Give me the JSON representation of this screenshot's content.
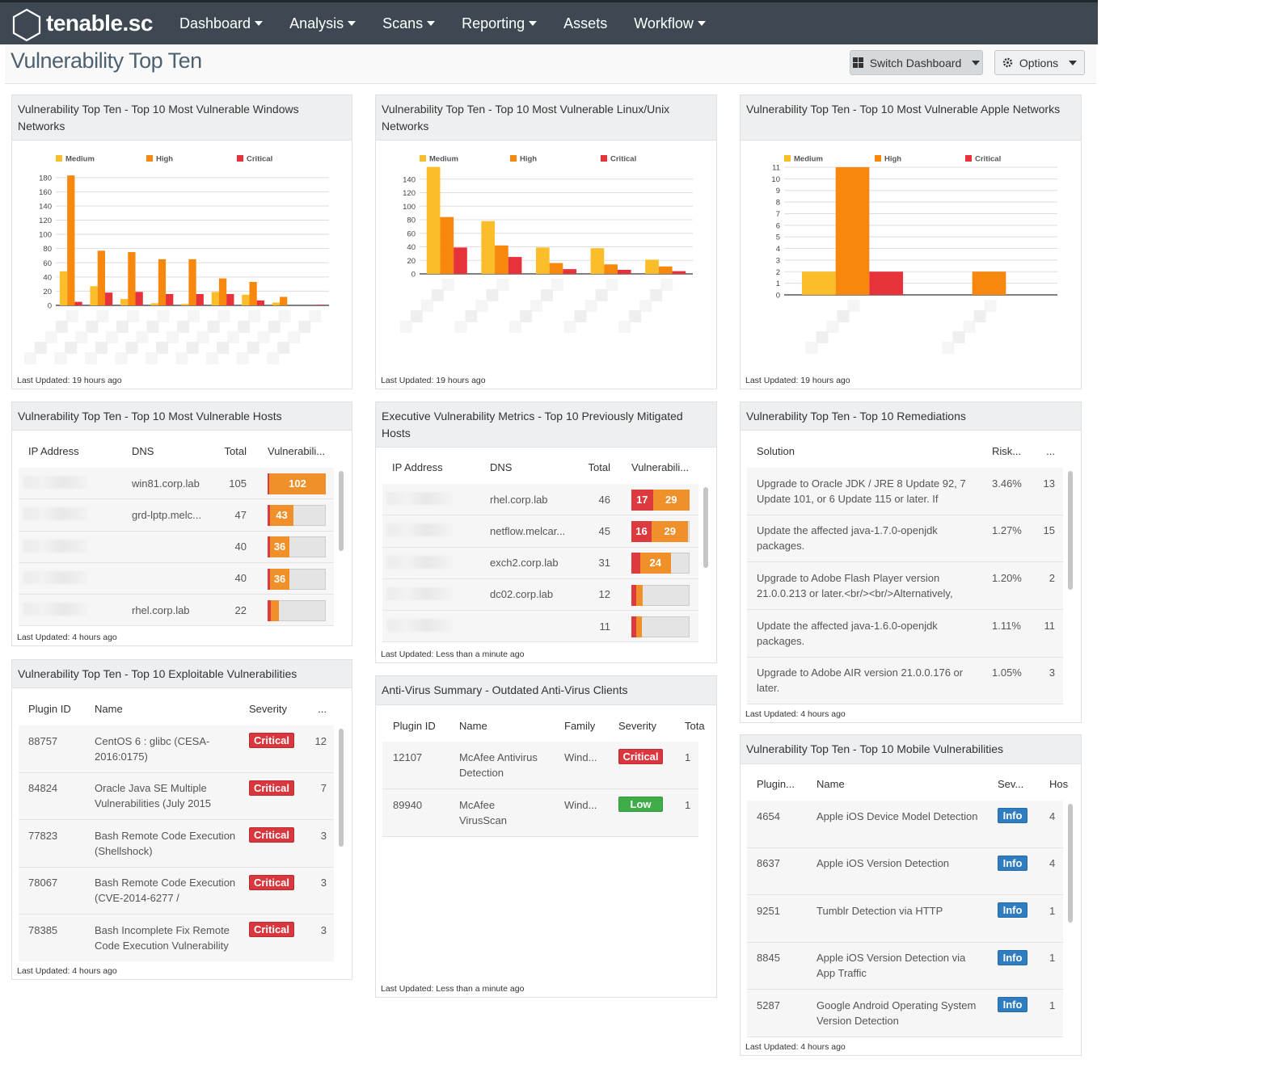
{
  "nav": {
    "brand": "tenable.sc",
    "items": [
      {
        "label": "Dashboard",
        "dropdown": true
      },
      {
        "label": "Analysis",
        "dropdown": true
      },
      {
        "label": "Scans",
        "dropdown": true
      },
      {
        "label": "Reporting",
        "dropdown": true
      },
      {
        "label": "Assets",
        "dropdown": false
      },
      {
        "label": "Workflow",
        "dropdown": true
      }
    ]
  },
  "page": {
    "title": "Vulnerability Top Ten",
    "buttons": [
      {
        "label": "Switch Dashboard",
        "icon": "grid",
        "dropdown": true
      },
      {
        "label": "Options",
        "icon": "gear",
        "dropdown": true
      }
    ]
  },
  "severity_colors": {
    "Critical": "#d9363e",
    "Low": "#3fae49",
    "Info": "#2f7dc1"
  },
  "widgets": [
    {
      "title": "Vulnerability Top Ten - Top 10 Most Vulnerable Windows Networks",
      "footer": "Last Updated: 19 hours ago",
      "chart": {
        "type": "bar",
        "categories": [
          null,
          null,
          null,
          null,
          null,
          null,
          null,
          null,
          null
        ],
        "series": [
          {
            "name": "Medium",
            "color": "#fbbd29",
            "values": [
              48,
              27,
              9,
              3,
              2,
              19,
              15,
              4,
              0
            ]
          },
          {
            "name": "High",
            "color": "#f8870e",
            "values": [
              183,
              77,
              75,
              65,
              65,
              38,
              33,
              12,
              0
            ]
          },
          {
            "name": "Critical",
            "color": "#e8323a",
            "values": [
              5,
              18,
              19,
              16,
              16,
              16,
              7,
              0,
              1
            ]
          }
        ],
        "ylim": [
          0,
          190
        ],
        "yticks": [
          0,
          20,
          40,
          60,
          80,
          100,
          120,
          140,
          160,
          180
        ],
        "grid": true
      }
    },
    {
      "title": "Vulnerability Top Ten - Top 10 Most Vulnerable Linux/Unix Networks",
      "footer": "Last Updated: 19 hours ago",
      "chart": {
        "type": "bar",
        "categories": [
          null,
          null,
          null,
          null,
          null
        ],
        "series": [
          {
            "name": "Medium",
            "color": "#fbbd29",
            "values": [
              158,
              78,
              39,
              38,
              21
            ]
          },
          {
            "name": "High",
            "color": "#f8870e",
            "values": [
              84,
              42,
              16,
              14,
              11
            ]
          },
          {
            "name": "Critical",
            "color": "#e8323a",
            "values": [
              39,
              25,
              7,
              6,
              4
            ]
          }
        ],
        "ylim": [
          0,
          160
        ],
        "yticks": [
          0,
          20,
          40,
          60,
          80,
          100,
          120,
          140
        ],
        "grid": true
      }
    },
    {
      "title": "Vulnerability Top Ten - Top 10 Most Vulnerable Apple Networks",
      "footer": "Last Updated: 19 hours ago",
      "chart": {
        "type": "bar",
        "categories": [
          null,
          null
        ],
        "series": [
          {
            "name": "Medium",
            "color": "#fbbd29",
            "values": [
              2,
              0
            ]
          },
          {
            "name": "High",
            "color": "#f8870e",
            "values": [
              11,
              2
            ]
          },
          {
            "name": "Critical",
            "color": "#e8323a",
            "values": [
              2,
              0
            ]
          }
        ],
        "ylim": [
          0,
          11
        ],
        "yticks": [
          0,
          1,
          2,
          3,
          4,
          5,
          6,
          7,
          8,
          9,
          10,
          11
        ],
        "grid": true
      }
    },
    {
      "title": "Vulnerability Top Ten - Top 10 Most Vulnerable Hosts",
      "footer": "Last Updated: 4 hours ago",
      "table": {
        "columns": [
          "IP Address",
          "DNS",
          "Total",
          "Vulnerabili..."
        ],
        "rows": [
          [
            null,
            "win81.corp.lab",
            105,
            {
              "critical": 3,
              "high": 102
            }
          ],
          [
            null,
            "grd-lptp.melc...",
            47,
            {
              "critical": 4,
              "high": 43
            }
          ],
          [
            null,
            null,
            40,
            {
              "critical": 4,
              "high": 36
            }
          ],
          [
            null,
            null,
            40,
            {
              "critical": 4,
              "high": 36
            }
          ],
          [
            null,
            "rhel.corp.lab",
            22,
            {
              "critical": 6,
              "high": 14
            }
          ]
        ]
      }
    },
    {
      "title": "Executive Vulnerability Metrics - Top 10 Previously Mitigated Hosts",
      "footer": "Last Updated: Less than a minute ago",
      "table": {
        "columns": [
          "IP Address",
          "DNS",
          "Total",
          "Vulnerabili..."
        ],
        "rows": [
          [
            null,
            "rhel.corp.lab",
            46,
            {
              "critical": 17,
              "high": 29
            }
          ],
          [
            null,
            "netflow.melcar...",
            45,
            {
              "critical": 16,
              "high": 29
            }
          ],
          [
            null,
            "exch2.corp.lab",
            31,
            {
              "critical": 7,
              "high": 24
            }
          ],
          [
            null,
            "dc02.corp.lab",
            12,
            {
              "critical": 4,
              "high": 5
            }
          ],
          [
            null,
            null,
            11,
            {
              "critical": 4,
              "high": 4
            }
          ]
        ]
      }
    },
    {
      "title": "Vulnerability Top Ten - Top 10 Remediations",
      "footer": "Last Updated: 4 hours ago",
      "table": {
        "columns": [
          "Solution",
          "Risk...",
          "..."
        ],
        "rows": [
          [
            "Upgrade to Oracle JDK / JRE 8 Update 92, 7 Update 101, or 6 Update 115 or later. If",
            "3.46%",
            13
          ],
          [
            "Update the affected java-1.7.0-openjdk packages.",
            "1.27%",
            15
          ],
          [
            "Upgrade to Adobe Flash Player version 21.0.0.213 or later.<br/><br/>Alternatively,",
            "1.20%",
            2
          ],
          [
            "Update the affected java-1.6.0-openjdk packages.",
            "1.11%",
            11
          ],
          [
            "Upgrade to Adobe AIR version 21.0.0.176 or later.",
            "1.05%",
            3
          ]
        ]
      }
    },
    {
      "title": "Vulnerability Top Ten - Top 10 Exploitable Vulnerabilities",
      "footer": "Last Updated: 4 hours ago",
      "table": {
        "columns": [
          "Plugin ID",
          "Name",
          "Severity",
          "..."
        ],
        "rows": [
          [
            88757,
            "CentOS 6 : glibc (CESA-2016:0175)",
            "Critical",
            12
          ],
          [
            84824,
            "Oracle Java SE Multiple Vulnerabilities (July 2015",
            "Critical",
            7
          ],
          [
            77823,
            "Bash Remote Code Execution (Shellshock)",
            "Critical",
            3
          ],
          [
            78067,
            "Bash Remote Code Execution (CVE-2014-6277 /",
            "Critical",
            3
          ],
          [
            78385,
            "Bash Incomplete Fix Remote Code Execution Vulnerability",
            "Critical",
            3
          ]
        ]
      }
    },
    {
      "title": "Anti-Virus Summary - Outdated Anti-Virus Clients",
      "footer": "Last Updated: Less than a minute ago",
      "table": {
        "columns": [
          "Plugin ID",
          "Name",
          "Family",
          "Severity",
          "Tota"
        ],
        "rows": [
          [
            12107,
            "McAfee Antivirus Detection",
            "Wind...",
            "Critical",
            1
          ],
          [
            89940,
            "McAfee VirusScan",
            "Wind...",
            "Low",
            1
          ]
        ]
      }
    },
    {
      "title": "Vulnerability Top Ten - Top 10 Mobile Vulnerabilities",
      "footer": "Last Updated: 4 hours ago",
      "table": {
        "columns": [
          "Plugin...",
          "Name",
          "Sev...",
          "Hos"
        ],
        "rows": [
          [
            4654,
            "Apple iOS Device Model Detection",
            "Info",
            4
          ],
          [
            8637,
            "Apple iOS Version Detection",
            "Info",
            4
          ],
          [
            9251,
            "Tumblr Detection via HTTP",
            "Info",
            1
          ],
          [
            8845,
            "Apple iOS Version Detection via App Traffic",
            "Info",
            1
          ],
          [
            5287,
            "Google Android Operating System Version Detection",
            "Info",
            1
          ]
        ]
      }
    }
  ]
}
